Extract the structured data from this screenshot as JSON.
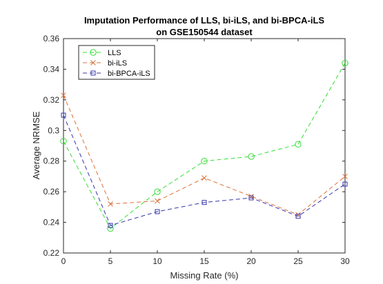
{
  "chart_data": {
    "type": "line",
    "title": [
      "Imputation Performance of LLS, bi-iLS, and bi-BPCA-iLS",
      "on GSE150544 dataset"
    ],
    "xlabel": "Missing Rate (%)",
    "ylabel": "Average NRMSE",
    "x": [
      0,
      5,
      10,
      15,
      20,
      25,
      30
    ],
    "xlim": [
      0,
      30
    ],
    "ylim": [
      0.22,
      0.36
    ],
    "xticks": [
      "0",
      "5",
      "10",
      "15",
      "20",
      "25",
      "30"
    ],
    "yticks": [
      "0.22",
      "0.24",
      "0.26",
      "0.28",
      "0.3",
      "0.32",
      "0.34",
      "0.36"
    ],
    "grid": false,
    "legend_position": "top-left",
    "series": [
      {
        "name": "LLS",
        "color": "#33dd33",
        "marker": "circle",
        "values": [
          0.293,
          0.236,
          0.26,
          0.28,
          0.283,
          0.291,
          0.344
        ]
      },
      {
        "name": "bi-iLS",
        "color": "#d9713a",
        "marker": "x",
        "values": [
          0.323,
          0.252,
          0.254,
          0.269,
          0.257,
          0.245,
          0.27
        ]
      },
      {
        "name": "bi-BPCA-iLS",
        "color": "#3333aa",
        "marker": "square",
        "values": [
          0.31,
          0.238,
          0.247,
          0.253,
          0.256,
          0.244,
          0.265
        ]
      }
    ]
  }
}
